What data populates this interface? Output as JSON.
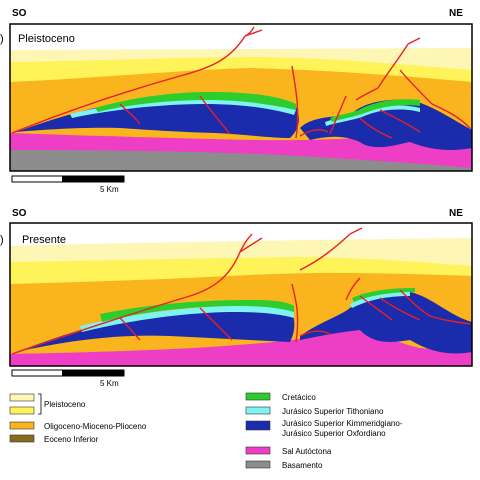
{
  "panels": [
    {
      "left_label": "SO",
      "right_label": "NE",
      "marker": ")",
      "title": "Pleistoceno",
      "scale_label": "5 Km"
    },
    {
      "left_label": "SO",
      "right_label": "NE",
      "marker": ")",
      "title": "Presente",
      "scale_label": "5 Km"
    }
  ],
  "legend": {
    "items": [
      {
        "label": "Pleistoceno",
        "color": "#fdf6b4"
      },
      {
        "label": "",
        "color": "#fff35a"
      },
      {
        "label": "Oligoceno-Mioceno-Plioceno",
        "color": "#f9b41e"
      },
      {
        "label": "Eoceno Inferior",
        "color": "#8a6a1e"
      },
      {
        "label": "Cretácico",
        "color": "#2dcd2d"
      },
      {
        "label": "Jurásico Superior Tithoniano",
        "color": "#7ff2f2"
      },
      {
        "label": "Jurásico Superior Kimmeridgiano-",
        "label2": "Jurásico Superior Oxfordiano",
        "color": "#1a2bab"
      },
      {
        "label": "Sal Autóctona",
        "color": "#ee3ec6"
      },
      {
        "label": "Basamento",
        "color": "#8c8c8c"
      }
    ]
  },
  "colors": {
    "fault": "#e8202a",
    "pale_yellow": "#fdf6b4",
    "yellow": "#fff35a",
    "orange": "#f9b41e",
    "green": "#2dcd2d",
    "cyan": "#7ff2f2",
    "blue": "#1a2bab",
    "magenta": "#ee3ec6",
    "gray": "#8c8c8c"
  }
}
